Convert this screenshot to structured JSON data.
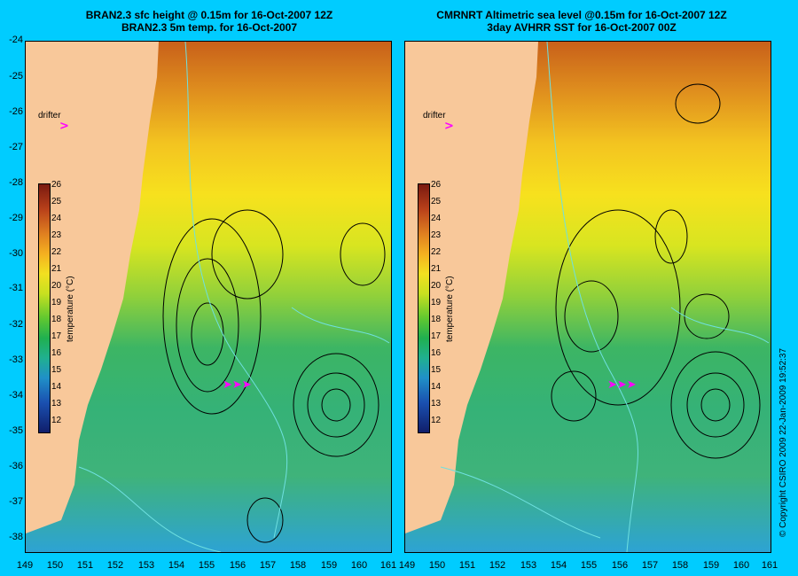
{
  "colors": {
    "background": "#00ccff",
    "land": "#f8c89a",
    "drifter": "#ff00ff",
    "contour_black": "#000000",
    "contour_cyan": "#6fe0e0"
  },
  "left_panel": {
    "title_line1": "BRAN2.3 sfc height @ 0.15m for 16-Oct-2007 12Z",
    "title_line2": "BRAN2.3 5m temp. for 16-Oct-2007",
    "drifter_label": "drifter"
  },
  "right_panel": {
    "title_line1": "CMRNRT Altimetric sea level  @0.15m  for 16-Oct-2007 12Z",
    "title_line2": "3day AVHRR SST for 16-Oct-2007 00Z",
    "drifter_label": "drifter"
  },
  "y_axis_ticks": [
    "-24",
    "-25",
    "-26",
    "-27",
    "-28",
    "-29",
    "-30",
    "-31",
    "-32",
    "-33",
    "-34",
    "-35",
    "-36",
    "-37",
    "-38"
  ],
  "x_axis_ticks_left": [
    "149",
    "150",
    "151",
    "152",
    "153",
    "154",
    "155",
    "156",
    "157",
    "158",
    "159",
    "160",
    "161"
  ],
  "x_axis_ticks_right": [
    "149",
    "150",
    "151",
    "152",
    "153",
    "154",
    "155",
    "156",
    "157",
    "158",
    "159",
    "160",
    "161"
  ],
  "colorbar": {
    "ticks": [
      "26",
      "25",
      "24",
      "23",
      "22",
      "21",
      "20",
      "19",
      "18",
      "17",
      "16",
      "15",
      "14",
      "13",
      "12"
    ],
    "label": "temperature (°C)"
  },
  "copyright": "© Copyright CSIRO 2009   22-Jan-2009 19:52:37"
}
